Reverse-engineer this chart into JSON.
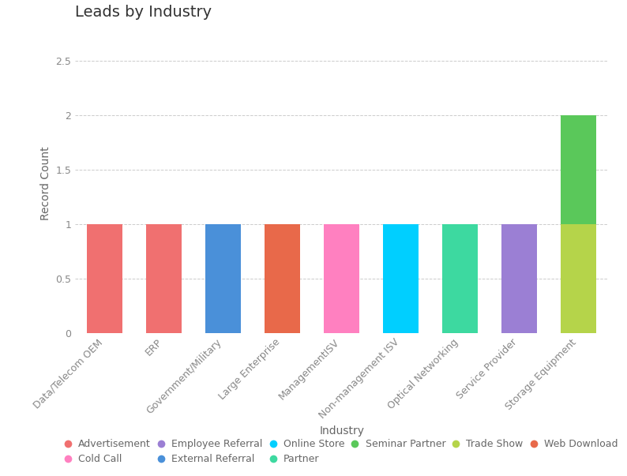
{
  "title": "Leads by Industry",
  "xlabel": "Industry",
  "ylabel": "Record Count",
  "categories": [
    "Data/Telecom OEM",
    "ERP",
    "Government/Military",
    "Large Enterprise",
    "ManagementISV",
    "Non-management ISV",
    "Optical Networking",
    "Service Provider",
    "Storage Equipment"
  ],
  "ylim": [
    0,
    2.75
  ],
  "yticks": [
    0,
    0.5,
    1,
    1.5,
    2,
    2.5
  ],
  "bar_data": [
    {
      "industry": "Data/Telecom OEM",
      "source": "Advertisement",
      "value": 1,
      "color": "#F07070"
    },
    {
      "industry": "ERP",
      "source": "Advertisement",
      "value": 1,
      "color": "#F07070"
    },
    {
      "industry": "Government/Military",
      "source": "External Referral",
      "value": 1,
      "color": "#4A90D9"
    },
    {
      "industry": "Large Enterprise",
      "source": "Web Download",
      "value": 1,
      "color": "#E8694A"
    },
    {
      "industry": "ManagementISV",
      "source": "Cold Call",
      "value": 1,
      "color": "#FF80C0"
    },
    {
      "industry": "Non-management ISV",
      "source": "Online Store",
      "value": 1,
      "color": "#00CFFF"
    },
    {
      "industry": "Optical Networking",
      "source": "Partner",
      "value": 1,
      "color": "#3DD9A0"
    },
    {
      "industry": "Service Provider",
      "source": "Employee Referral",
      "value": 1,
      "color": "#9B7FD4"
    },
    {
      "industry": "Storage Equipment",
      "source": "Trade Show",
      "value": 1,
      "color": "#B5D44A"
    },
    {
      "industry": "Storage Equipment",
      "source": "Seminar Partner",
      "value": 1,
      "color": "#5AC85A"
    }
  ],
  "legend_entries": [
    {
      "label": "Advertisement",
      "color": "#F07070"
    },
    {
      "label": "Cold Call",
      "color": "#FF80C0"
    },
    {
      "label": "Employee Referral",
      "color": "#9B7FD4"
    },
    {
      "label": "External Referral",
      "color": "#4A90D9"
    },
    {
      "label": "Online Store",
      "color": "#00CFFF"
    },
    {
      "label": "Partner",
      "color": "#3DD9A0"
    },
    {
      "label": "Seminar Partner",
      "color": "#5AC85A"
    },
    {
      "label": "Trade Show",
      "color": "#B5D44A"
    },
    {
      "label": "Web Download",
      "color": "#E8694A"
    }
  ],
  "background_color": "#ffffff",
  "grid_color": "#cccccc",
  "title_fontsize": 14,
  "axis_label_fontsize": 10,
  "tick_fontsize": 9,
  "legend_fontsize": 9
}
